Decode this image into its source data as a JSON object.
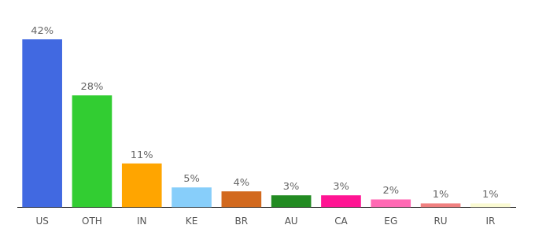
{
  "chart_data": {
    "type": "bar",
    "categories": [
      "US",
      "OTH",
      "IN",
      "KE",
      "BR",
      "AU",
      "CA",
      "EG",
      "RU",
      "IR"
    ],
    "values": [
      42,
      28,
      11,
      5,
      4,
      3,
      3,
      2,
      1,
      1
    ],
    "value_labels": [
      "42%",
      "28%",
      "11%",
      "5%",
      "4%",
      "3%",
      "3%",
      "2%",
      "1%",
      "1%"
    ],
    "colors": [
      "#4169e1",
      "#32cd32",
      "#ffa500",
      "#87cefa",
      "#d2691e",
      "#228b22",
      "#ff1493",
      "#ff69b4",
      "#f08080",
      "#fafad2"
    ],
    "ylim": [
      0,
      42
    ],
    "grid": false,
    "data_labels": true,
    "tick_labels": "x"
  }
}
